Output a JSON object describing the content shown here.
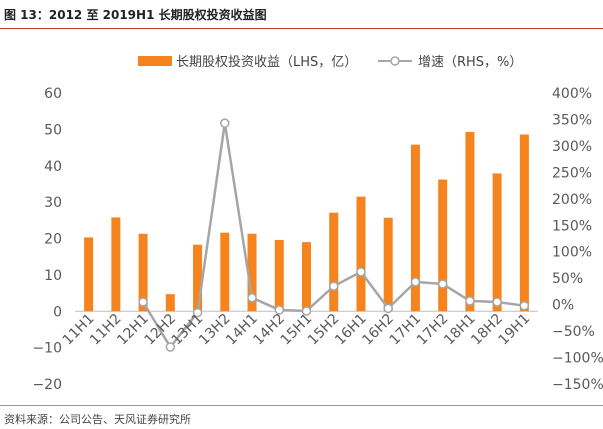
{
  "figure": {
    "title": "图 13：2012 至 2019H1 长期股权投资收益图",
    "source": "资料来源：公司公告、天风证券研究所"
  },
  "colors": {
    "bar": "#f5841f",
    "line": "#a6a6a6",
    "axis_text": "#595959",
    "title_rule": "#cc3333"
  },
  "chart_data": {
    "type": "bar",
    "categories": [
      "11H1",
      "11H2",
      "12H1",
      "12H2",
      "13H1",
      "13H2",
      "14H1",
      "14H2",
      "15H1",
      "15H2",
      "16H1",
      "16H2",
      "17H1",
      "17H2",
      "18H1",
      "18H2",
      "19H1"
    ],
    "series": [
      {
        "name": "长期股权投资收益（LHS，亿）",
        "type": "bar",
        "axis": "left",
        "values": [
          20.3,
          25.8,
          21.3,
          4.7,
          18.3,
          21.6,
          21.3,
          19.6,
          19.0,
          27.1,
          31.5,
          25.7,
          45.8,
          36.2,
          49.3,
          37.9,
          48.6
        ]
      },
      {
        "name": "增速（RHS，%）",
        "type": "line",
        "axis": "right",
        "values": [
          null,
          null,
          5,
          -80,
          -15,
          343,
          13,
          -10,
          -12,
          35,
          62,
          -7,
          43,
          39,
          7,
          5,
          -2
        ]
      }
    ],
    "y_left": {
      "min": -20,
      "max": 60,
      "step": 10,
      "ticks": [
        "−20",
        "−10",
        "0",
        "10",
        "20",
        "30",
        "40",
        "50",
        "60"
      ]
    },
    "y_right": {
      "min": -150,
      "max": 400,
      "step": 50,
      "ticks": [
        "−150%",
        "−100%",
        "−50%",
        "0%",
        "50%",
        "100%",
        "150%",
        "200%",
        "250%",
        "300%",
        "350%",
        "400%"
      ]
    },
    "legend_position": "top",
    "grid": false
  }
}
